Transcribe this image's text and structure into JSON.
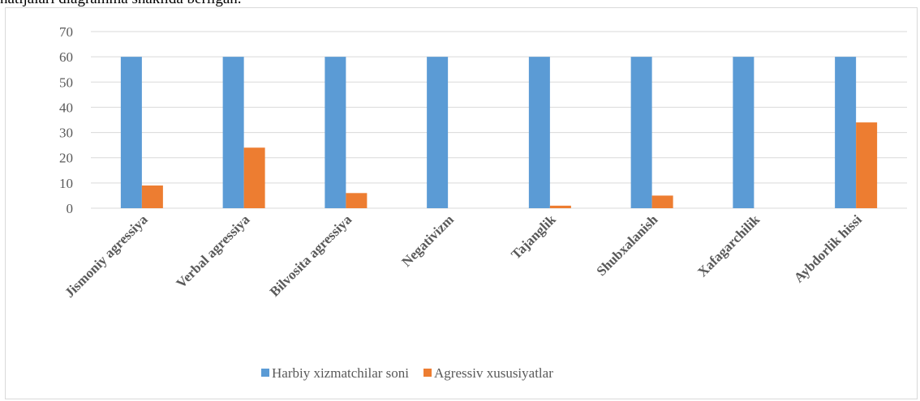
{
  "caption": "natijalari diagramma shaklida berilgan.",
  "chart_data": {
    "type": "bar",
    "title": "",
    "xlabel": "",
    "ylabel": "",
    "categories": [
      "Jismoniy agressiya",
      "Verbal agressiya",
      "Bilvosita agressiya",
      "Negativizm",
      "Tajanglik",
      "Shubxalanish",
      "Xafagarchilik",
      "Aybdorlik hissi"
    ],
    "series": [
      {
        "name": "Harbiy xizmatchilar soni",
        "color": "#5b9bd5",
        "values": [
          60,
          60,
          60,
          60,
          60,
          60,
          60,
          60
        ]
      },
      {
        "name": "Agressiv xususiyatlar",
        "color": "#ed7d31",
        "values": [
          9,
          24,
          6,
          0,
          1,
          5,
          0,
          34
        ]
      }
    ],
    "ylim": [
      0,
      70
    ],
    "yticks": [
      0,
      10,
      20,
      30,
      40,
      50,
      60,
      70
    ],
    "grid": true,
    "legend": "bottom"
  }
}
